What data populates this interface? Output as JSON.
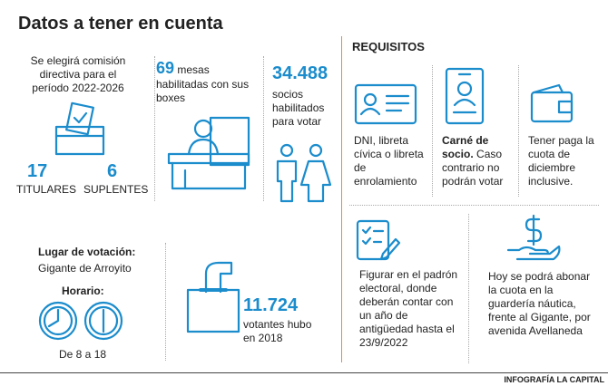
{
  "header": {
    "title": "Datos a tener en cuenta"
  },
  "comision": {
    "text": "Se elegirá comisión directiva para el período 2022-2026",
    "titulares": {
      "number": "17",
      "label": "TITULARES"
    },
    "suplentes": {
      "number": "6",
      "label": "SUPLENTES"
    }
  },
  "mesas": {
    "number": "69",
    "text": "mesas habilitadas con sus boxes"
  },
  "socios": {
    "number": "34.488",
    "text": "socios habilitados para votar"
  },
  "lugar": {
    "label": "Lugar de votación:",
    "place": "Gigante de Arroyito",
    "horario_label": "Horario:",
    "horario": "De 8 a 18"
  },
  "votantes": {
    "number": "11.724",
    "text": "votantes hubo en 2018"
  },
  "requisitos": {
    "title": "REQUISITOS",
    "items": [
      {
        "text": "DNI, libreta cívica o libreta de enrolamiento"
      },
      {
        "bold": "Carné de socio.",
        "text": "Caso contrario no podrán votar"
      },
      {
        "text": "Tener paga la cuota de diciembre inclusive."
      },
      {
        "text": "Figurar en el padrón electoral, donde deberán contar con un año de antigüedad hasta el 23/9/2022"
      },
      {
        "text": "Hoy se podrá abonar la cuota en la guardería náutica, frente al Gigante, por avenida Avellaneda"
      }
    ]
  },
  "footer": {
    "credit": "INFOGRAFÍA LA CAPITAL"
  }
}
